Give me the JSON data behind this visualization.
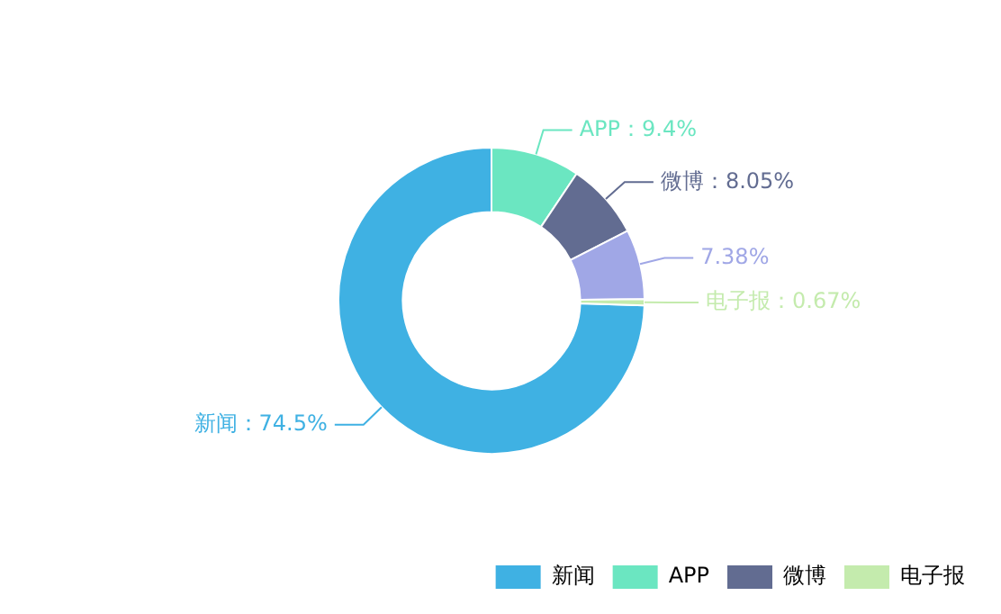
{
  "chart_data": {
    "type": "donut",
    "categories": [
      "新闻",
      "APP",
      "微博",
      null,
      "电子报"
    ],
    "values": [
      74.5,
      9.4,
      8.05,
      7.38,
      0.67
    ],
    "colors": [
      "#3fb1e3",
      "#6be6c1",
      "#626c91",
      "#a0a7e6",
      "#c4ebad"
    ],
    "value_labels": [
      "新闻：74.5%",
      "APP：9.4%",
      "微博：8.05%",
      "7.38%",
      "电子报：0.67%"
    ],
    "legend": "bottom right"
  }
}
